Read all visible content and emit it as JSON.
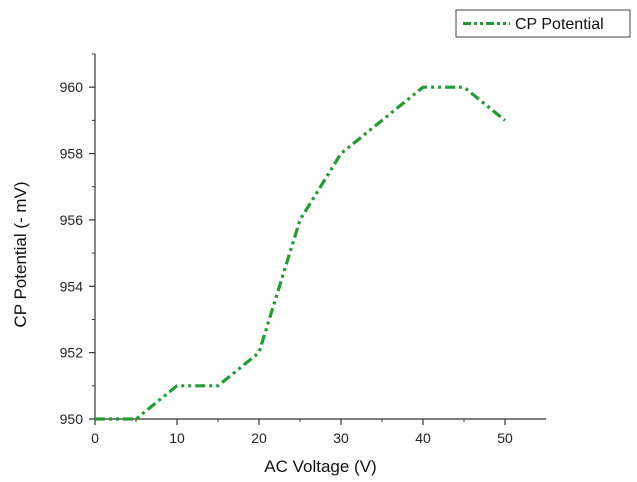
{
  "chart_data": {
    "type": "line",
    "title": "",
    "xlabel": "AC Voltage (V)",
    "ylabel": "CP Potential (- mV)",
    "xlim": [
      0,
      55
    ],
    "ylim": [
      950,
      961
    ],
    "x_ticks": [
      0,
      10,
      20,
      30,
      40,
      50
    ],
    "y_ticks": [
      950,
      952,
      954,
      956,
      958,
      960
    ],
    "grid": false,
    "legend_position": "top-right",
    "series": [
      {
        "name": "CP Potential",
        "color": "#1f9e2f",
        "line_style": "dash-dot-dot",
        "x": [
          0,
          5,
          10,
          15,
          20,
          25,
          30,
          35,
          40,
          45,
          50
        ],
        "y": [
          950,
          950,
          951,
          951,
          952,
          956,
          958,
          959,
          960,
          960,
          959
        ]
      }
    ]
  }
}
